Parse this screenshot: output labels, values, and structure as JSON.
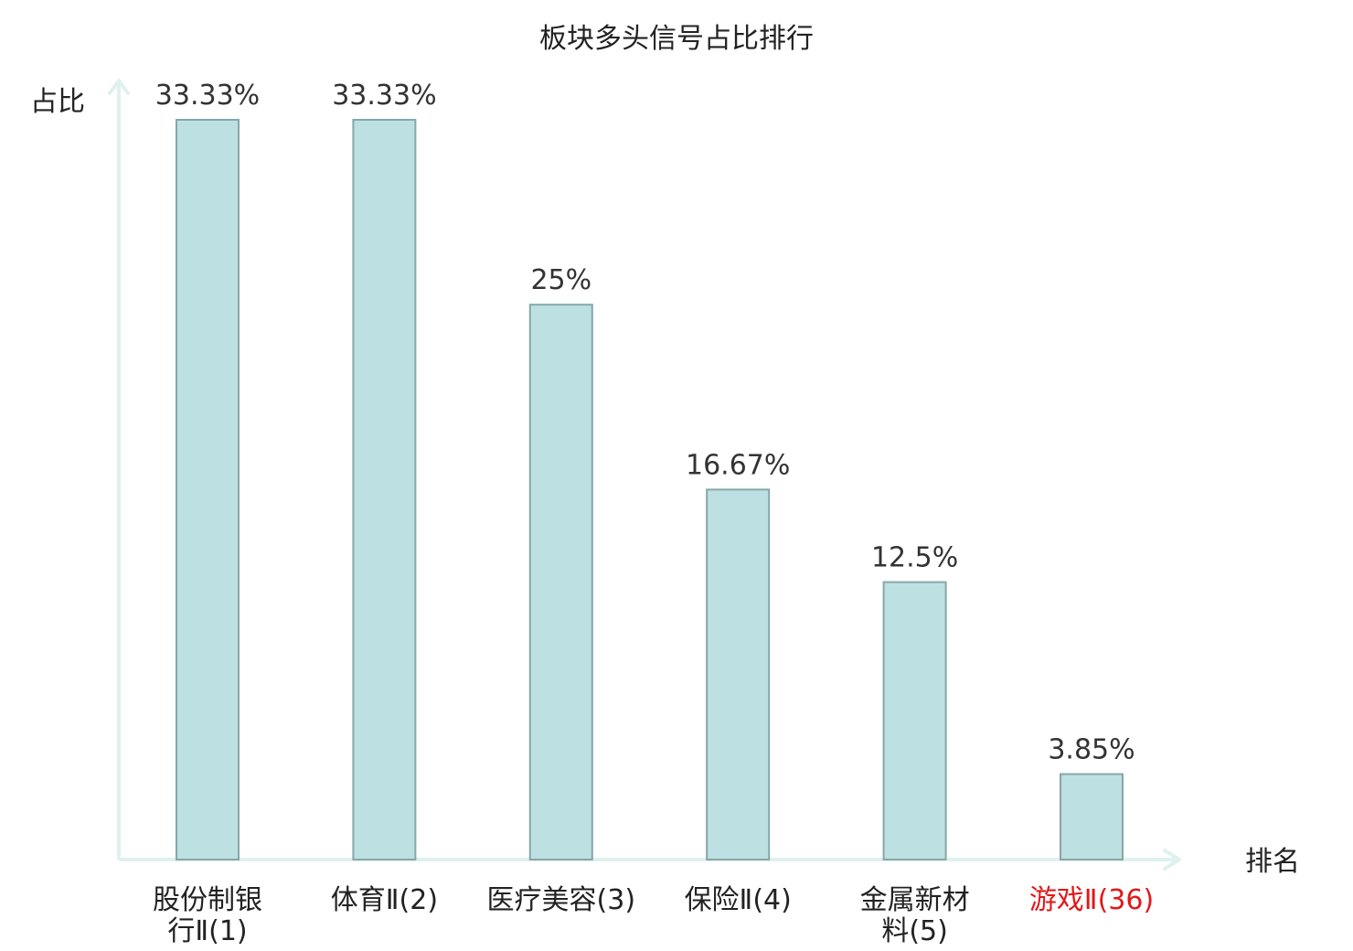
{
  "chart_data": {
    "type": "bar",
    "title": "板块多头信号占比排行",
    "xlabel": "排名",
    "ylabel": "占比",
    "categories": [
      [
        "股份制银",
        "行Ⅱ(1)"
      ],
      [
        "体育Ⅱ(2)"
      ],
      [
        "医疗美容(3)"
      ],
      [
        "保险Ⅱ(4)"
      ],
      [
        "金属新材",
        "料(5)"
      ],
      [
        "游戏Ⅱ(36)"
      ]
    ],
    "values": [
      33.33,
      33.33,
      25,
      16.67,
      12.5,
      3.85
    ],
    "value_labels": [
      "33.33%",
      "33.33%",
      "25%",
      "16.67%",
      "12.5%",
      "3.85%"
    ],
    "highlight_index": 5,
    "ylim": [
      0,
      33.33
    ],
    "grid": false,
    "colors": {
      "bar_fill": "#bde0e2",
      "bar_stroke": "#86a7a8",
      "axis": "#dff1ee",
      "text": "#222222",
      "highlight_text": "#e0191b"
    }
  }
}
